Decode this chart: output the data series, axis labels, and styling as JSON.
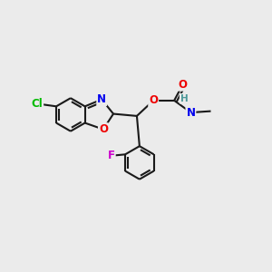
{
  "background_color": "#ebebeb",
  "bond_color": "#1a1a1a",
  "atom_colors": {
    "Cl": "#00bb00",
    "N": "#0000ee",
    "O": "#ee0000",
    "F": "#cc00cc",
    "H": "#4d9999",
    "C": "#1a1a1a"
  },
  "figsize": [
    3.0,
    3.0
  ],
  "dpi": 100,
  "lw": 1.5,
  "fs": 8.5
}
